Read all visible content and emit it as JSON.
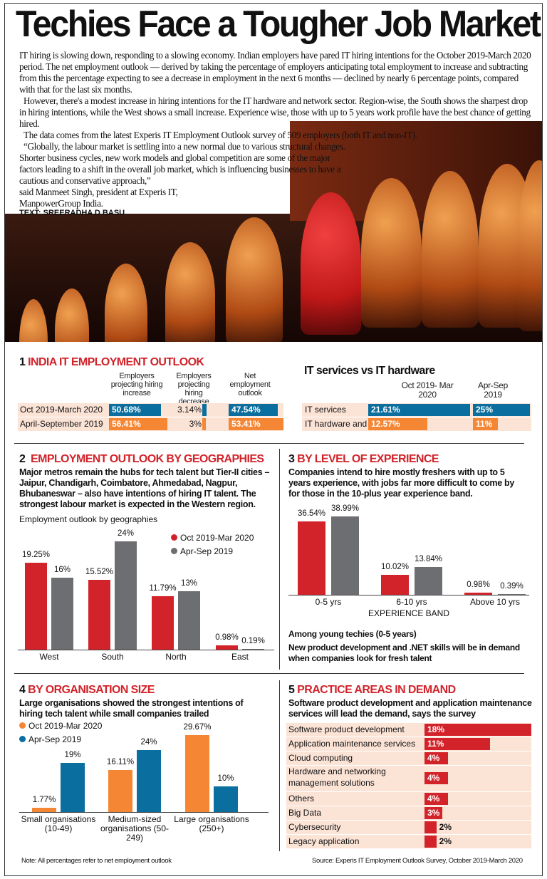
{
  "title": "Techies Face a Tougher Job Market",
  "intro": [
    "IT hiring is slowing down, responding to a slowing economy. Indian employers have pared IT hiring intentions for the October 2019-March 2020 period. The net employment outlook — derived by taking the percentage of employers anticipating total employment to increase and subtracting from this the percentage expecting to see a decrease in employment in the next 6 months — declined by nearly 6 percentage points, compared with that for the last six months.",
    "However, there's a modest increase in hiring intentions for the IT hardware and network sector. Region-wise, the South shows the sharpest drop in hiring intentions, while the West shows a small increase. Experience wise, those with up to 5 years work profile have the best chance of getting hired.",
    "The data comes from the latest Experis IT Employment Outlook survey of 509 employers (both IT and non-IT).",
    "“Globally, the labour market is settling into a new normal due to various structural changes. Shorter business cycles, new work models and global competition are some of the major factors leading to a shift in the overall job market, which is influencing businesses to have a cautious and conservative approach,”"
  ],
  "quote_attr1": "said Manmeet Singh, president at Experis IT,",
  "quote_attr2": "ManpowerGroup India.",
  "byline": "TEXT: SREERADHA D BASU",
  "colors": {
    "red": "#d2232a",
    "blue": "#0a6e9e",
    "orange": "#f58634",
    "grey": "#6d6e71",
    "pink": "#fbe3d6"
  },
  "s1": {
    "num": "1",
    "title": "INDIA IT EMPLOYMENT OUTLOOK",
    "headers": [
      "Employers projecting hiring increase",
      "Employers projecting hiring decrease",
      "Net employment outlook"
    ],
    "rows": [
      {
        "label": "Oct 2019-March 2020",
        "inc": "50.68%",
        "dec": "3.14%",
        "net": "47.54%",
        "color": "#0a6e9e"
      },
      {
        "label": "April-September 2019",
        "inc": "56.41%",
        "dec": "3%",
        "net": "53.41%",
        "color": "#f58634"
      }
    ]
  },
  "s1b": {
    "title": "IT services vs IT hardware",
    "headers": [
      "Oct 2019- Mar 2020",
      "Apr-Sep 2019"
    ],
    "rows": [
      {
        "label": "IT services",
        "a": "21.61%",
        "b": "25%",
        "color": "#0a6e9e"
      },
      {
        "label": "IT hardware and network",
        "a": "12.57%",
        "b": "11%",
        "color": "#f58634"
      }
    ]
  },
  "s2": {
    "num": "2",
    "title": "EMPLOYMENT OUTLOOK BY GEOGRAPHIES",
    "sub": "Major metros remain the hubs for tech talent but Tier-II cities – Jaipur, Chandigarh, Coimbatore, Ahmedabad, Nagpur, Bhubaneswar – also have intentions of hiring IT talent. The strongest labour market is expected in the Western region.",
    "chart_label": "Employment outlook by geographies"
  },
  "s3": {
    "num": "3",
    "title": "BY LEVEL OF EXPERIENCE",
    "sub": "Companies intend to hire mostly freshers with up to 5 years experience, with jobs far more difficult to come by for those in the 10-plus year experience band.",
    "note_title": "Among young techies (0-5 years)",
    "note": "New product development and .NET skills will be in demand when companies look for fresh talent"
  },
  "s4": {
    "num": "4",
    "title": "BY ORGANISATION SIZE",
    "sub": "Large organisations showed the strongest intentions of hiring tech talent while small companies trailed"
  },
  "s5": {
    "num": "5",
    "title": "PRACTICE AREAS IN DEMAND",
    "sub": "Software product development and application maintenance services will lead the demand, says the survey"
  },
  "footnote": "Note: All percentages refer to net employment outlook",
  "source": "Source: Experis IT Employment Outlook Survey, October 2019-March 2020",
  "chart_data": [
    {
      "id": "geo",
      "type": "bar",
      "title": "Employment outlook by geographies",
      "categories": [
        "West",
        "South",
        "North",
        "East"
      ],
      "series": [
        {
          "name": "Oct 2019-Mar 2020",
          "color": "#d2232a",
          "values": [
            19.25,
            15.52,
            11.79,
            0.98
          ],
          "labels": [
            "19.25%",
            "15.52%",
            "11.79%",
            "0.98%"
          ]
        },
        {
          "name": "Apr-Sep 2019",
          "color": "#6d6e71",
          "values": [
            16,
            24,
            13,
            0.19
          ],
          "labels": [
            "16%",
            "24%",
            "13%",
            "0.19%"
          ]
        }
      ],
      "ylim": [
        0,
        24
      ],
      "legend": "top-right"
    },
    {
      "id": "exp",
      "type": "bar",
      "xlabel": "EXPERIENCE BAND",
      "categories": [
        "0-5 yrs",
        "6-10 yrs",
        "Above 10 yrs"
      ],
      "series": [
        {
          "name": "Oct 2019-Mar 2020",
          "color": "#d2232a",
          "values": [
            36.54,
            10.02,
            0.98
          ],
          "labels": [
            "36.54%",
            "10.02%",
            "0.98%"
          ]
        },
        {
          "name": "Apr-Sep 2019",
          "color": "#6d6e71",
          "values": [
            38.99,
            13.84,
            0.39
          ],
          "labels": [
            "38.99%",
            "13.84%",
            "0.39%"
          ]
        }
      ],
      "ylim": [
        0,
        39
      ]
    },
    {
      "id": "org",
      "type": "bar",
      "categories": [
        "Small organisations (10-49)",
        "Medium-sized organisations (50-249)",
        "Large organisations (250+)"
      ],
      "series": [
        {
          "name": "Oct 2019-Mar 2020",
          "color": "#f58634",
          "values": [
            1.77,
            16.11,
            29.67
          ],
          "labels": [
            "1.77%",
            "16.11%",
            "29.67%"
          ]
        },
        {
          "name": "Apr-Sep 2019",
          "color": "#0a6e9e",
          "values": [
            19,
            24,
            10
          ],
          "labels": [
            "19%",
            "24%",
            "10%"
          ]
        }
      ],
      "ylim": [
        0,
        30
      ],
      "legend": "top-left"
    },
    {
      "id": "practice",
      "type": "bar",
      "orientation": "horizontal",
      "categories": [
        "Software product development",
        "Application maintenance services",
        "Cloud computing",
        "Hardware and networking management solutions",
        "Others",
        "Big Data",
        "Cybersecurity",
        "Legacy application"
      ],
      "values": [
        18,
        11,
        4,
        4,
        4,
        3,
        2,
        2
      ],
      "labels": [
        "18%",
        "11%",
        "4%",
        "4%",
        "4%",
        "3%",
        "2%",
        "2%"
      ],
      "color": "#d2232a"
    }
  ]
}
